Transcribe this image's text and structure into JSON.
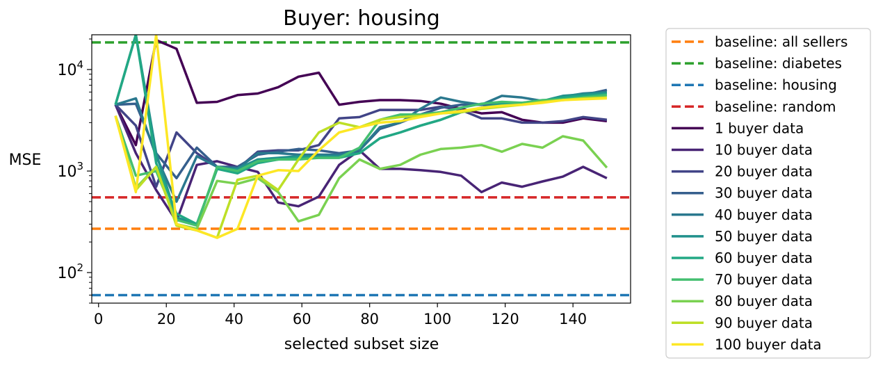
{
  "chart_data": {
    "type": "line",
    "title": "Buyer: housing",
    "xlabel": "selected subset size",
    "ylabel": "MSE",
    "xlim": [
      -2,
      157
    ],
    "ylim": [
      50,
      22000
    ],
    "yscale": "log",
    "x_ticks": [
      0,
      20,
      40,
      60,
      80,
      100,
      120,
      140
    ],
    "y_ticks": [
      {
        "value": 100,
        "label": "10",
        "exp": "2"
      },
      {
        "value": 1000,
        "label": "10",
        "exp": "3"
      },
      {
        "value": 10000,
        "label": "10",
        "exp": "4"
      }
    ],
    "grid": false,
    "legend_position": "outside-right",
    "x": [
      5,
      11,
      17,
      23,
      29,
      35,
      41,
      47,
      53,
      59,
      65,
      71,
      77,
      83,
      89,
      95,
      101,
      107,
      113,
      119,
      125,
      131,
      137,
      143,
      150
    ],
    "baselines": [
      {
        "name": "baseline: all sellers",
        "value": 270,
        "color": "#ff7f0e"
      },
      {
        "name": "baseline: diabetes",
        "value": 18500,
        "color": "#2ca02c"
      },
      {
        "name": "baseline: housing",
        "value": 60,
        "color": "#1f77b4"
      },
      {
        "name": "baseline: random",
        "value": 550,
        "color": "#d62728"
      }
    ],
    "series": [
      {
        "name": "1 buyer data",
        "color": "#440154",
        "values": [
          4500,
          1800,
          19500,
          16000,
          4700,
          4800,
          5600,
          5800,
          6700,
          8500,
          9300,
          4500,
          4800,
          5000,
          5000,
          4900,
          4600,
          4100,
          3700,
          3800,
          3200,
          3000,
          3000,
          3300,
          3100
        ]
      },
      {
        "name": "10 buyer data",
        "color": "#482475",
        "values": [
          4500,
          1500,
          650,
          320,
          1150,
          1250,
          1100,
          980,
          490,
          450,
          560,
          1150,
          1600,
          1050,
          1050,
          1020,
          980,
          900,
          620,
          770,
          700,
          790,
          880,
          1100,
          850
        ]
      },
      {
        "name": "20 buyer data",
        "color": "#414487",
        "values": [
          4500,
          2800,
          700,
          2400,
          1500,
          1100,
          1050,
          1550,
          1600,
          1600,
          1800,
          3300,
          3400,
          4000,
          4000,
          4000,
          4300,
          4000,
          3300,
          3300,
          3000,
          3000,
          3100,
          3400,
          3200
        ]
      },
      {
        "name": "30 buyer data",
        "color": "#355f8d",
        "values": [
          4500,
          4600,
          1500,
          850,
          1700,
          1100,
          1100,
          1450,
          1550,
          1650,
          1600,
          1500,
          1600,
          2600,
          3000,
          3600,
          4200,
          4500,
          4500,
          4500,
          4600,
          4800,
          5200,
          5600,
          6300
        ]
      },
      {
        "name": "40 buyer data",
        "color": "#2a788e",
        "values": [
          4500,
          5200,
          1400,
          500,
          1400,
          1100,
          1050,
          1500,
          1500,
          1450,
          1450,
          1450,
          1600,
          2700,
          3000,
          4100,
          5300,
          4800,
          4500,
          5500,
          5300,
          4900,
          5400,
          5800,
          6000
        ]
      },
      {
        "name": "50 buyer data",
        "color": "#21918c",
        "values": [
          4500,
          22000,
          1500,
          350,
          300,
          1050,
          1050,
          1300,
          1350,
          1400,
          1400,
          1400,
          1500,
          2100,
          2400,
          2800,
          3200,
          3800,
          4200,
          4600,
          4700,
          4900,
          5500,
          5700,
          5900
        ]
      },
      {
        "name": "60 buyer data",
        "color": "#22a884",
        "values": [
          4500,
          22000,
          1200,
          380,
          300,
          1050,
          950,
          1200,
          1300,
          1350,
          1350,
          1350,
          1500,
          2100,
          2400,
          2800,
          3200,
          3800,
          4200,
          4500,
          4600,
          4900,
          5300,
          5500,
          5700
        ]
      },
      {
        "name": "70 buyer data",
        "color": "#44bf70",
        "values": [
          3500,
          900,
          1000,
          330,
          290,
          1100,
          1000,
          1250,
          1300,
          1300,
          1350,
          1350,
          1700,
          3200,
          3600,
          3600,
          3800,
          4200,
          4600,
          4800,
          4700,
          5000,
          5100,
          5300,
          5600
        ]
      },
      {
        "name": "80 buyer data",
        "color": "#7ad151",
        "values": [
          3500,
          680,
          1100,
          300,
          270,
          800,
          750,
          850,
          620,
          320,
          370,
          850,
          1300,
          1050,
          1150,
          1450,
          1650,
          1700,
          1800,
          1550,
          1850,
          1700,
          2200,
          2000,
          1080
        ]
      },
      {
        "name": "90 buyer data",
        "color": "#bddf26",
        "values": [
          3500,
          650,
          1100,
          290,
          260,
          220,
          820,
          900,
          650,
          1300,
          2400,
          3000,
          2700,
          3200,
          3400,
          3500,
          3700,
          3800,
          4100,
          4300,
          4500,
          4800,
          5000,
          5200,
          5300
        ]
      },
      {
        "name": "100 buyer data",
        "color": "#fde725",
        "values": [
          3500,
          620,
          22000,
          300,
          260,
          220,
          270,
          900,
          1020,
          1000,
          1600,
          2400,
          2700,
          3000,
          3100,
          3400,
          3700,
          3900,
          4200,
          4400,
          4500,
          4700,
          5000,
          5100,
          5200
        ]
      }
    ]
  }
}
